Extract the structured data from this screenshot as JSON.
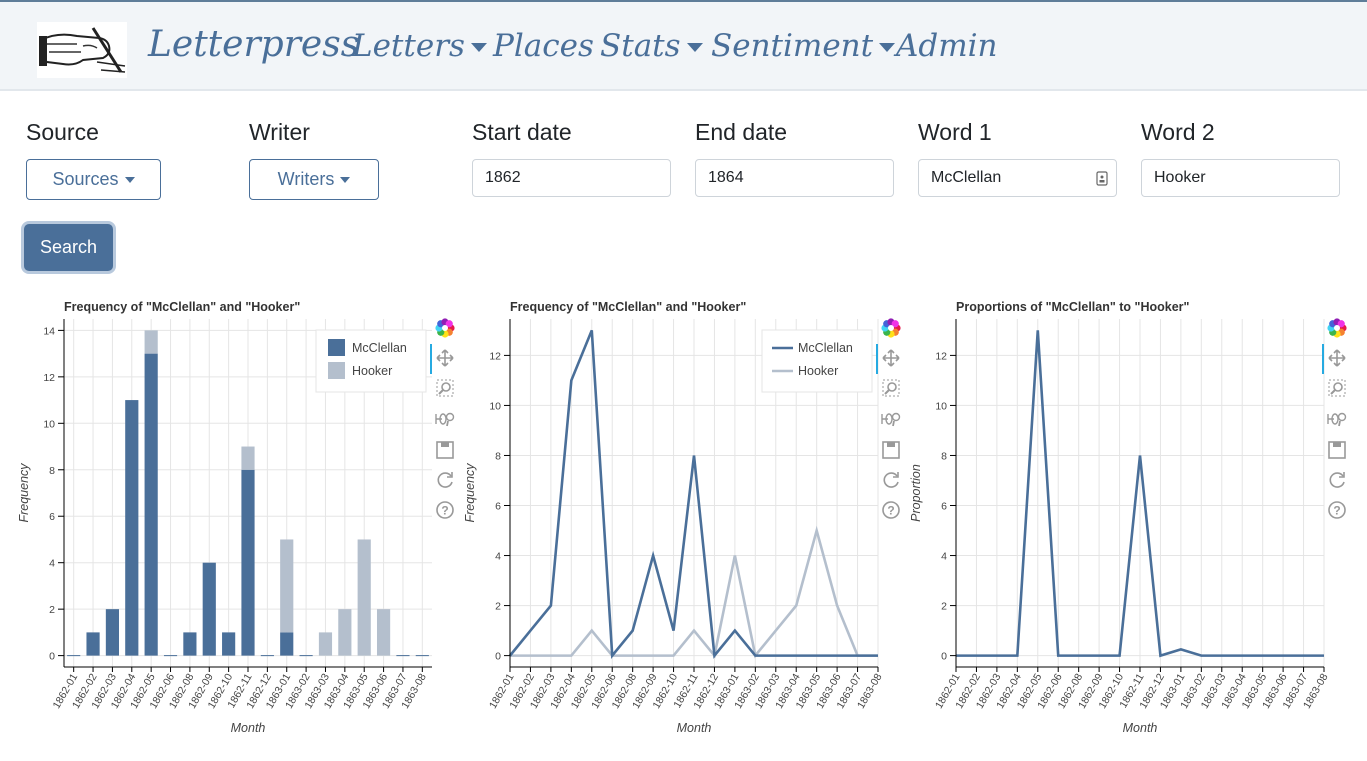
{
  "nav": {
    "brand": "Letterpress",
    "items": [
      {
        "label": "Letters",
        "dropdown": true
      },
      {
        "label": "Places",
        "dropdown": false
      },
      {
        "label": "Stats",
        "dropdown": true
      },
      {
        "label": "Sentiment",
        "dropdown": true
      },
      {
        "label": "Admin",
        "dropdown": false
      }
    ]
  },
  "form": {
    "source_label": "Source",
    "source_button": "Sources",
    "writer_label": "Writer",
    "writer_button": "Writers",
    "start_label": "Start date",
    "start_value": "1862",
    "end_label": "End date",
    "end_value": "1864",
    "word1_label": "Word 1",
    "word1_value": "McClellan",
    "word2_label": "Word 2",
    "word2_value": "Hooker",
    "search_label": "Search"
  },
  "colors": {
    "word1": "#4a6f99",
    "word2": "#b4bfcd",
    "accent": "#4a6f99"
  },
  "toolbar_icons": [
    "bokeh-logo-icon",
    "pan-icon",
    "box-zoom-icon",
    "wheel-zoom-icon",
    "save-icon",
    "reset-icon",
    "help-icon"
  ],
  "chart_data": [
    {
      "type": "bar",
      "stacked": true,
      "title": "Frequency of \"McClellan\" and \"Hooker\"",
      "xlabel": "Month",
      "ylabel": "Frequency",
      "ylim": [
        0,
        14
      ],
      "yticks": [
        0,
        2,
        4,
        6,
        8,
        10,
        12,
        14
      ],
      "legend_position": "top-right",
      "grid": true,
      "categories": [
        "1862-01",
        "1862-02",
        "1862-03",
        "1862-04",
        "1862-05",
        "1862-06",
        "1862-08",
        "1862-09",
        "1862-10",
        "1862-11",
        "1862-12",
        "1863-01",
        "1863-02",
        "1863-03",
        "1863-04",
        "1863-05",
        "1863-06",
        "1863-07",
        "1863-08"
      ],
      "series": [
        {
          "name": "McClellan",
          "values": [
            0,
            1,
            2,
            11,
            13,
            0,
            1,
            4,
            1,
            8,
            0,
            1,
            0,
            0,
            0,
            0,
            0,
            0,
            0
          ]
        },
        {
          "name": "Hooker",
          "values": [
            0,
            0,
            0,
            0,
            1,
            0,
            0,
            0,
            0,
            1,
            0,
            4,
            0,
            1,
            2,
            5,
            2,
            0,
            0
          ]
        }
      ]
    },
    {
      "type": "line",
      "title": "Frequency of \"McClellan\" and \"Hooker\"",
      "xlabel": "Month",
      "ylabel": "Frequency",
      "ylim": [
        0,
        13
      ],
      "yticks": [
        0,
        2,
        4,
        6,
        8,
        10,
        12
      ],
      "legend_position": "top-right",
      "grid": true,
      "categories": [
        "1862-01",
        "1862-02",
        "1862-03",
        "1862-04",
        "1862-05",
        "1862-06",
        "1862-08",
        "1862-09",
        "1862-10",
        "1862-11",
        "1862-12",
        "1863-01",
        "1863-02",
        "1863-03",
        "1863-04",
        "1863-05",
        "1863-06",
        "1863-07",
        "1863-08"
      ],
      "series": [
        {
          "name": "McClellan",
          "values": [
            0,
            1,
            2,
            11,
            13,
            0,
            1,
            4,
            1,
            8,
            0,
            1,
            0,
            0,
            0,
            0,
            0,
            0,
            0
          ]
        },
        {
          "name": "Hooker",
          "values": [
            0,
            0,
            0,
            0,
            1,
            0,
            0,
            0,
            0,
            1,
            0,
            4,
            0,
            1,
            2,
            5,
            2,
            0,
            0
          ]
        }
      ]
    },
    {
      "type": "line",
      "title": "Proportions of \"McClellan\" to \"Hooker\"",
      "xlabel": "Month",
      "ylabel": "Proportion",
      "ylim": [
        0,
        13
      ],
      "yticks": [
        0,
        2,
        4,
        6,
        8,
        10,
        12
      ],
      "grid": true,
      "categories": [
        "1862-01",
        "1862-02",
        "1862-03",
        "1862-04",
        "1862-05",
        "1862-06",
        "1862-08",
        "1862-09",
        "1862-10",
        "1862-11",
        "1862-12",
        "1863-01",
        "1863-02",
        "1863-03",
        "1863-04",
        "1863-05",
        "1863-06",
        "1863-07",
        "1863-08"
      ],
      "series": [
        {
          "values": [
            0,
            0,
            0,
            0,
            13,
            0,
            0,
            0,
            0,
            8,
            0,
            0.25,
            0,
            0,
            0,
            0,
            0,
            0,
            0
          ]
        }
      ]
    }
  ]
}
